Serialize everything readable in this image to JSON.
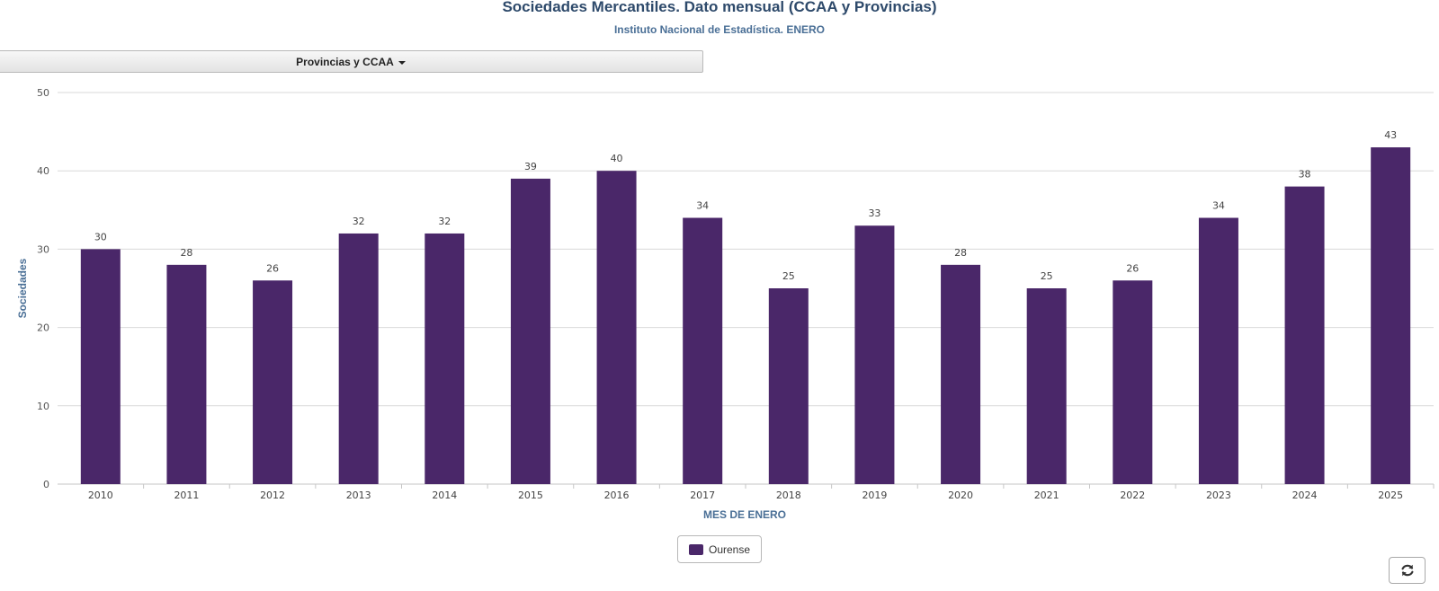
{
  "chart_data": {
    "type": "bar",
    "title": "Sociedades Mercantiles. Dato mensual (CCAA y Provincias)",
    "subtitle": "Instituto Nacional de Estadística. ENERO",
    "xlabel": "MES DE ENERO",
    "ylabel": "Sociedades",
    "ylim": [
      0,
      50
    ],
    "yticks": [
      0,
      10,
      20,
      30,
      40,
      50
    ],
    "grid": true,
    "legend_position": "bottom-center",
    "categories": [
      "2010",
      "2011",
      "2012",
      "2013",
      "2014",
      "2015",
      "2016",
      "2017",
      "2018",
      "2019",
      "2020",
      "2021",
      "2022",
      "2023",
      "2024",
      "2025"
    ],
    "series": [
      {
        "name": "Ourense",
        "color": "#4a2769",
        "values": [
          30,
          28,
          26,
          32,
          32,
          39,
          40,
          34,
          25,
          33,
          28,
          25,
          26,
          34,
          38,
          43
        ]
      }
    ]
  },
  "controls": {
    "filter_label": "Provincias y CCAA",
    "refresh_icon": "refresh-icon"
  },
  "colors": {
    "bar": "#4a2769",
    "title": "#2e4a6b",
    "axis_title": "#4a6f96",
    "grid": "#d9d9d9"
  }
}
